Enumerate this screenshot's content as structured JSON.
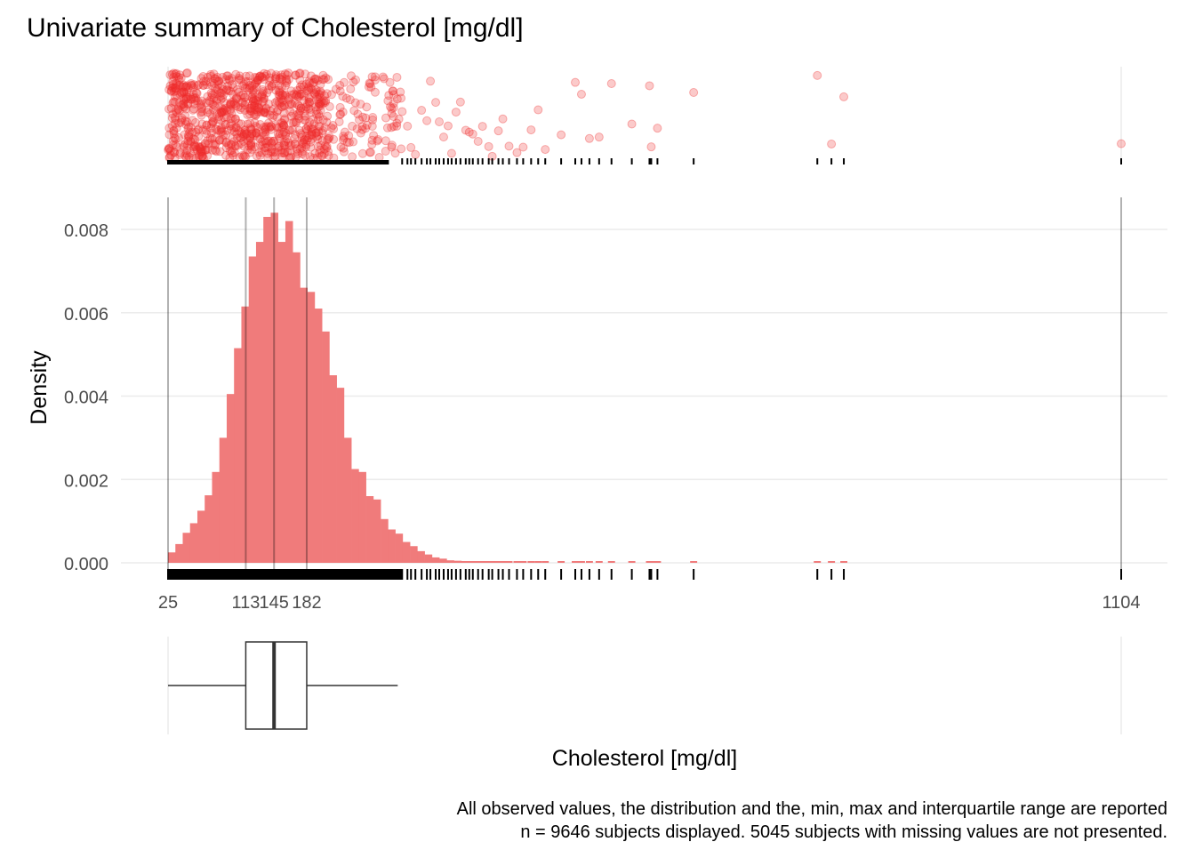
{
  "chart_data": {
    "type": "bar",
    "title": "Univariate summary of Cholesterol [mg/dl]",
    "xlabel": "Cholesterol [mg/dl]",
    "ylabel": "Density",
    "xlim": [
      25,
      1104
    ],
    "ylim": [
      0,
      0.0085
    ],
    "x_ticks": [
      25,
      113,
      145,
      182,
      1104
    ],
    "x_tick_labels": [
      "25",
      "113",
      "145",
      "182",
      "1104"
    ],
    "y_ticks": [
      0,
      0.002,
      0.004,
      0.006,
      0.008
    ],
    "y_tick_labels": [
      "0.000",
      "0.002",
      "0.004",
      "0.006",
      "0.008"
    ],
    "grid": true,
    "bar_color": "#F07B7B",
    "point_color": "#EE2C2C",
    "histogram": {
      "bin_width": 8.3,
      "x_start": 25,
      "density": [
        0.00025,
        0.00045,
        0.00072,
        0.00095,
        0.00125,
        0.00162,
        0.00218,
        0.003,
        0.00405,
        0.00515,
        0.00615,
        0.00735,
        0.0077,
        0.0083,
        0.0084,
        0.0077,
        0.0082,
        0.00745,
        0.0066,
        0.0065,
        0.0061,
        0.00555,
        0.0045,
        0.0042,
        0.003,
        0.00225,
        0.00218,
        0.0016,
        0.00152,
        0.00105,
        0.0008,
        0.0007,
        0.0005,
        0.0004,
        0.00028,
        0.0002,
        0.00013,
        0.0001,
        6e-05,
        5e-05,
        4e-05,
        3e-05,
        2e-05,
        2e-05,
        1e-05,
        1e-05
      ]
    },
    "summary": {
      "min": 25,
      "q1": 113,
      "median": 145,
      "q3": 182,
      "max": 1104,
      "whisker_high": 285
    },
    "sparse_values": [
      290,
      296,
      300,
      305,
      312,
      318,
      322,
      328,
      332,
      337,
      342,
      346,
      351,
      356,
      362,
      366,
      370,
      376,
      381,
      388,
      392,
      399,
      404,
      411,
      420,
      427,
      436,
      444,
      452,
      470,
      486,
      493,
      502,
      513,
      527,
      550,
      570,
      572,
      579,
      620,
      760,
      776,
      790
    ],
    "captions": [
      "All observed values, the distribution and the, min, max and interquartile range are reported",
      "n = 9646 subjects displayed. 5045 subjects with missing values are not presented."
    ]
  }
}
